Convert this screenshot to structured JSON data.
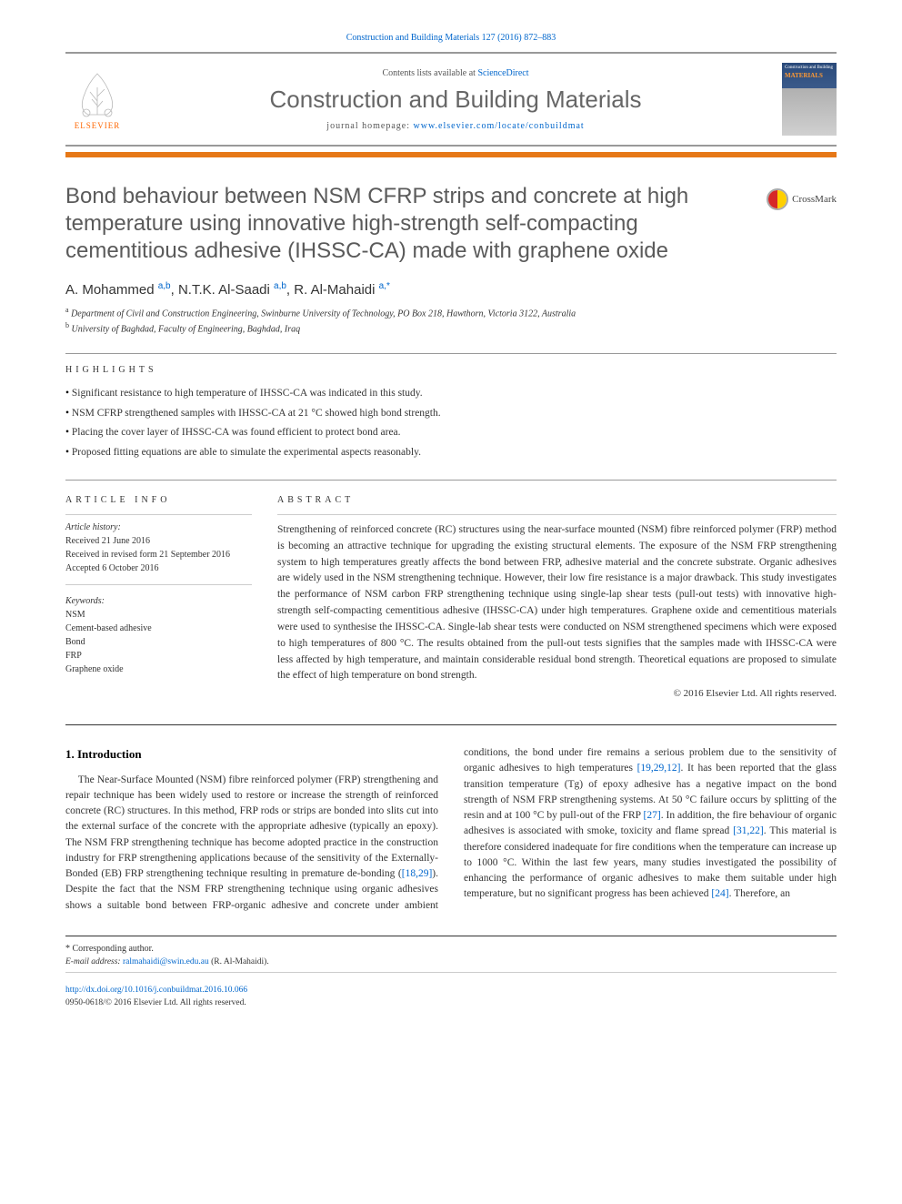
{
  "citation": "Construction and Building Materials 127 (2016) 872–883",
  "header": {
    "contents_prefix": "Contents lists available at ",
    "contents_link": "ScienceDirect",
    "journal_name": "Construction and Building Materials",
    "homepage_prefix": "journal homepage: ",
    "homepage_url": "www.elsevier.com/locate/conbuildmat",
    "elsevier_label": "ELSEVIER",
    "cover_top": "Construction and Building",
    "cover_mat": "MATERIALS"
  },
  "title": "Bond behaviour between NSM CFRP strips and concrete at high temperature using innovative high-strength self-compacting cementitious adhesive (IHSSC-CA) made with graphene oxide",
  "crossmark": "CrossMark",
  "authors_html": "A. Mohammed <sup>a,b</sup>, N.T.K. Al-Saadi <sup>a,b</sup>, R. Al-Mahaidi <sup>a,*</sup>",
  "affiliations": [
    {
      "sup": "a",
      "text": "Department of Civil and Construction Engineering, Swinburne University of Technology, PO Box 218, Hawthorn, Victoria 3122, Australia"
    },
    {
      "sup": "b",
      "text": "University of Baghdad, Faculty of Engineering, Baghdad, Iraq"
    }
  ],
  "highlights_label": "HIGHLIGHTS",
  "highlights": [
    "Significant resistance to high temperature of IHSSC-CA was indicated in this study.",
    "NSM CFRP strengthened samples with IHSSC-CA at 21 °C showed high bond strength.",
    "Placing the cover layer of IHSSC-CA was found efficient to protect bond area.",
    "Proposed fitting equations are able to simulate the experimental aspects reasonably."
  ],
  "info": {
    "label": "ARTICLE INFO",
    "history_label": "Article history:",
    "received": "Received 21 June 2016",
    "revised": "Received in revised form 21 September 2016",
    "accepted": "Accepted 6 October 2016",
    "keywords_label": "Keywords:",
    "keywords": [
      "NSM",
      "Cement-based adhesive",
      "Bond",
      "FRP",
      "Graphene oxide"
    ]
  },
  "abstract": {
    "label": "ABSTRACT",
    "text": "Strengthening of reinforced concrete (RC) structures using the near-surface mounted (NSM) fibre reinforced polymer (FRP) method is becoming an attractive technique for upgrading the existing structural elements. The exposure of the NSM FRP strengthening system to high temperatures greatly affects the bond between FRP, adhesive material and the concrete substrate. Organic adhesives are widely used in the NSM strengthening technique. However, their low fire resistance is a major drawback. This study investigates the performance of NSM carbon FRP strengthening technique using single-lap shear tests (pull-out tests) with innovative high-strength self-compacting cementitious adhesive (IHSSC-CA) under high temperatures. Graphene oxide and cementitious materials were used to synthesise the IHSSC-CA. Single-lab shear tests were conducted on NSM strengthened specimens which were exposed to high temperatures of 800 °C. The results obtained from the pull-out tests signifies that the samples made with IHSSC-CA were less affected by high temperature, and maintain considerable residual bond strength. Theoretical equations are proposed to simulate the effect of high temperature on bond strength.",
    "copyright": "© 2016 Elsevier Ltd. All rights reserved."
  },
  "body": {
    "section_number": "1.",
    "section_title": "Introduction",
    "paragraph": "The Near-Surface Mounted (NSM) fibre reinforced polymer (FRP) strengthening and repair technique has been widely used to restore or increase the strength of reinforced concrete (RC) structures. In this method, FRP rods or strips are bonded into slits cut into the external surface of the concrete with the appropriate adhesive (typically an epoxy). The NSM FRP strengthening technique has become adopted practice in the construction industry for FRP strengthening applications because of the sensitivity of the Externally-Bonded (EB) FRP strengthening technique resulting in premature de-bonding (",
    "ref1": "[18,29]",
    "para_cont": ". Despite the fact that the NSM FRP strengthening technique using organic adhesives shows a suitable bond between FRP-organic adhesive and concrete under ambient conditions, the bond under fire remains a serious problem due to the sensitivity of organic adhesives to high temperatures ",
    "ref2": "[19,29,12]",
    "para_cont2": ". It has been reported that the glass transition temperature (Tg) of epoxy adhesive has a negative impact on the bond strength of NSM FRP strengthening systems. At 50 °C failure occurs by splitting of the resin and at 100 °C by pull-out of the FRP ",
    "ref3": "[27]",
    "para_cont3": ". In addition, the fire behaviour of organic adhesives is associated with smoke, toxicity and flame spread ",
    "ref4": "[31,22]",
    "para_cont4": ". This material is therefore considered inadequate for fire conditions when the temperature can increase up to 1000 °C. Within the last few years, many studies investigated the possibility of enhancing the performance of organic adhesives to make them suitable under high temperature, but no significant progress has been achieved ",
    "ref5": "[24]",
    "para_cont5": ". Therefore, an"
  },
  "footer": {
    "corresp_sym": "*",
    "corresp_text": " Corresponding author.",
    "email_label": "E-mail address: ",
    "email": "ralmahaidi@swin.edu.au",
    "email_name": " (R. Al-Mahaidi).",
    "doi": "http://dx.doi.org/10.1016/j.conbuildmat.2016.10.066",
    "issn_line": "0950-0618/© 2016 Elsevier Ltd. All rights reserved."
  },
  "colors": {
    "link": "#0066cc",
    "orange_bar": "#e67817",
    "elsevier_orange": "#ff6600",
    "title_gray": "#5a5a5a"
  }
}
